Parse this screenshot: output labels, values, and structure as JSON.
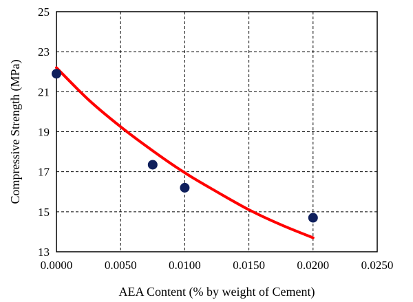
{
  "chart_data": {
    "type": "scatter",
    "xlabel": "AEA Content (% by weight of Cement)",
    "ylabel": "Compressive Strength (MPa)",
    "xlim": [
      0,
      0.025
    ],
    "ylim": [
      13,
      25
    ],
    "xticks": [
      0,
      0.005,
      0.01,
      0.015,
      0.02,
      0.025
    ],
    "xtick_labels": [
      "0.0000",
      "0.0050",
      "0.0100",
      "0.0150",
      "0.0200",
      "0.0250"
    ],
    "yticks": [
      13,
      15,
      17,
      19,
      21,
      23,
      25
    ],
    "ytick_labels": [
      "13",
      "15",
      "17",
      "19",
      "21",
      "23",
      "25"
    ],
    "grid": true,
    "series": [
      {
        "kind": "points",
        "color": "#0f1f5c",
        "x": [
          0.0,
          0.0075,
          0.01,
          0.02
        ],
        "y": [
          21.9,
          17.35,
          16.2,
          14.7
        ]
      },
      {
        "kind": "trendline",
        "color": "#ff0000",
        "x": [
          0.0,
          0.0025,
          0.005,
          0.0075,
          0.01,
          0.0125,
          0.015,
          0.0175,
          0.02
        ],
        "y": [
          22.2,
          20.6,
          19.25,
          18.05,
          16.95,
          16.0,
          15.1,
          14.35,
          13.7
        ]
      }
    ]
  }
}
